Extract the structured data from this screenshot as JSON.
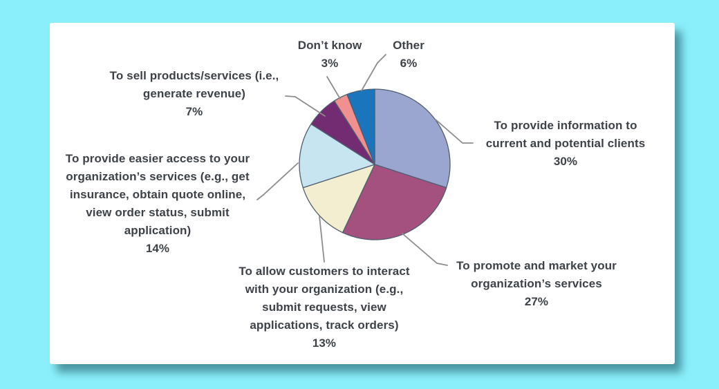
{
  "page": {
    "background_color": "#8BEFFA",
    "panel_color": "#FFFFFF",
    "text_color": "#3C4248"
  },
  "chart_data": {
    "type": "pie",
    "title": "",
    "direction": "clockwise",
    "start_angle_deg": 0,
    "stroke_color": "#4D5E6E",
    "leader_line_color": "#8C8C8C",
    "slices": [
      {
        "label": "To provide information to\ncurrent and potential clients",
        "pct": "30%",
        "value": 30,
        "color": "#9AA5D0"
      },
      {
        "label": "To promote and market your\norganization’s services",
        "pct": "27%",
        "value": 27,
        "color": "#A4517F"
      },
      {
        "label": "To allow customers to interact\nwith your organization (e.g.,\nsubmit requests, view\napplications, track orders)",
        "pct": "13%",
        "value": 13,
        "color": "#F3EECF"
      },
      {
        "label": "To provide easier access to your\norganization’s services (e.g., get\ninsurance, obtain quote online,\nview order status, submit\napplication)",
        "pct": "14%",
        "value": 14,
        "color": "#C7E4F1"
      },
      {
        "label": "To sell products/services (i.e.,\ngenerate revenue)",
        "pct": "7%",
        "value": 7,
        "color": "#732C72"
      },
      {
        "label": "Don’t know",
        "pct": "3%",
        "value": 3,
        "color": "#F1908E"
      },
      {
        "label": "Other",
        "pct": "6%",
        "value": 6,
        "color": "#1A75BC"
      }
    ]
  }
}
